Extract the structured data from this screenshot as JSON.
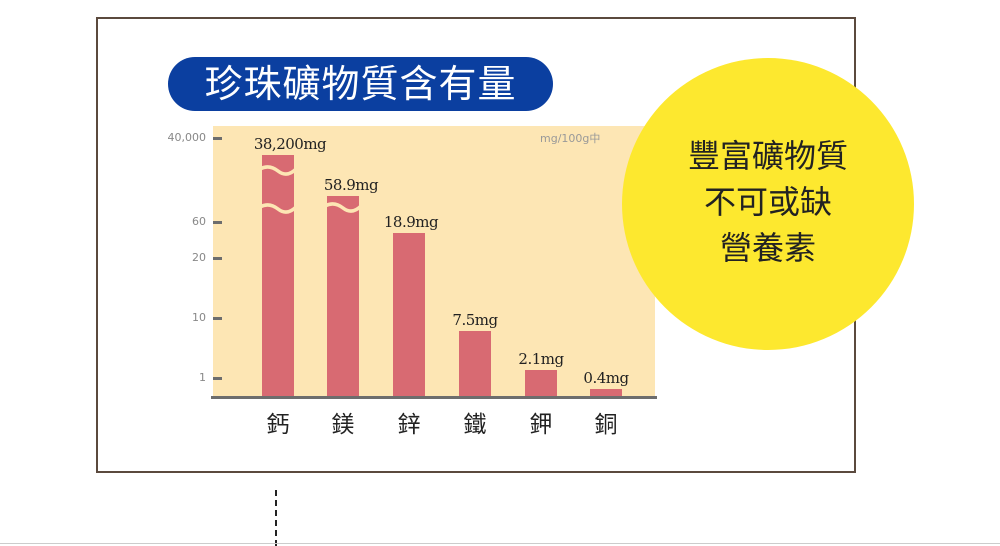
{
  "chart_data": {
    "type": "bar",
    "title": "珍珠礦物質含有量",
    "unit_note": "mg/100g中",
    "categories": [
      "鈣",
      "鎂",
      "鋅",
      "鐵",
      "鉀",
      "銅"
    ],
    "values": [
      38200,
      58.9,
      18.9,
      7.5,
      2.1,
      0.4
    ],
    "data_labels": [
      "38,200mg",
      "58.9mg",
      "18.9mg",
      "7.5mg",
      "2.1mg",
      "0.4mg"
    ],
    "yticks": [
      "40,000",
      "60",
      "20",
      "10",
      "1"
    ],
    "axis_break": true,
    "bar_color": "#d86a72",
    "plot_bg": "#fde6b4"
  },
  "callout": {
    "lines": [
      "豐富礦物質",
      "不可或缺",
      "營養素"
    ],
    "color": "#fde82f"
  },
  "title_color": "#0b3fa0"
}
